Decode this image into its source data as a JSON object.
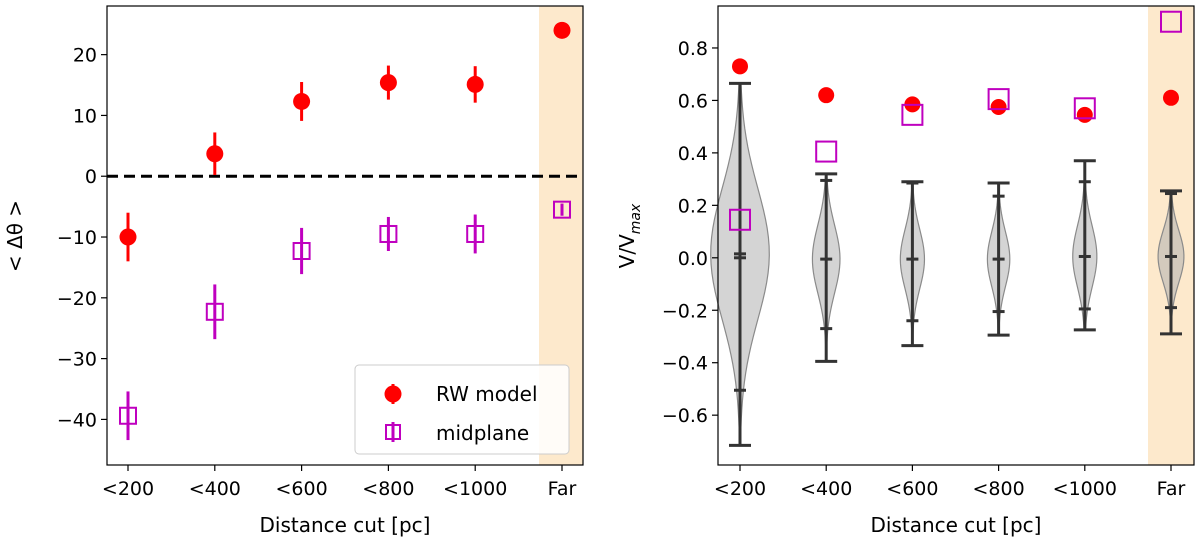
{
  "chart_data": [
    {
      "type": "scatter",
      "panel": "left",
      "xlabel": "Distance cut [pc]",
      "ylabel": "< Δθ >",
      "categories": [
        "<200",
        "<400",
        "<600",
        "<800",
        "<1000",
        "Far"
      ],
      "ylim": [
        -47.5,
        28.0
      ],
      "yticks": [
        -40,
        -30,
        -20,
        -10,
        0,
        10,
        20
      ],
      "reference_line": {
        "y": 0,
        "style": "dashed",
        "color": "#000000"
      },
      "highlight_category": "Far",
      "highlight_color": "#fde9cc",
      "legend": {
        "location": "bottom-right",
        "entries": [
          "RW model",
          "midplane"
        ]
      },
      "series": [
        {
          "name": "RW model",
          "marker": "filled-circle",
          "color": "#ff0000",
          "values": [
            -10,
            3.7,
            12.3,
            15.4,
            15.1,
            24.0
          ],
          "errors": [
            4.0,
            3.5,
            3.2,
            2.8,
            3.0,
            0
          ]
        },
        {
          "name": "midplane",
          "marker": "open-square",
          "color": "#bf00bf",
          "values": [
            -39.4,
            -22.3,
            -12.3,
            -9.5,
            -9.5,
            -5.5
          ],
          "errors": [
            4.0,
            4.5,
            3.8,
            2.8,
            3.2,
            1.0
          ]
        }
      ]
    },
    {
      "type": "scatter",
      "panel": "right",
      "xlabel": "Distance cut [pc]",
      "ylabel_main": "V/V",
      "ylabel_sub": "max",
      "categories": [
        "<200",
        "<400",
        "<600",
        "<800",
        "<1000",
        "Far"
      ],
      "ylim": [
        -0.79,
        0.96
      ],
      "yticks": [
        -0.6,
        -0.4,
        -0.2,
        0.0,
        0.2,
        0.4,
        0.6,
        0.8
      ],
      "ytick_labels": [
        "−0.6",
        "−0.4",
        "−0.2",
        "0.0",
        "0.2",
        "0.4",
        "0.6",
        "0.8"
      ],
      "highlight_category": "Far",
      "highlight_color": "#fde9cc",
      "series": [
        {
          "name": "RW model",
          "marker": "filled-circle",
          "color": "#ff0000",
          "values": [
            0.73,
            0.62,
            0.585,
            0.575,
            0.545,
            0.61
          ]
        },
        {
          "name": "midplane",
          "marker": "open-square",
          "color": "#bf00bf",
          "values": [
            0.145,
            0.405,
            0.545,
            0.605,
            0.57,
            0.9
          ]
        }
      ],
      "distributions": [
        {
          "min": -0.715,
          "max": 0.665,
          "mean": 0.015,
          "q_low": -0.505,
          "q_high": 0.0,
          "halfwidth": 0.17
        },
        {
          "min": -0.395,
          "max": 0.32,
          "mean": -0.005,
          "q_low": -0.27,
          "q_high": 0.295,
          "halfwidth": 0.08
        },
        {
          "min": -0.335,
          "max": 0.29,
          "mean": -0.005,
          "q_low": -0.24,
          "q_high": 0.285,
          "halfwidth": 0.07
        },
        {
          "min": -0.295,
          "max": 0.285,
          "mean": -0.005,
          "q_low": -0.205,
          "q_high": 0.235,
          "halfwidth": 0.065
        },
        {
          "min": -0.275,
          "max": 0.37,
          "mean": 0.005,
          "q_low": -0.195,
          "q_high": 0.29,
          "halfwidth": 0.07
        },
        {
          "min": -0.29,
          "max": 0.255,
          "mean": 0.005,
          "q_low": -0.19,
          "q_high": 0.245,
          "halfwidth": 0.075
        }
      ]
    }
  ]
}
